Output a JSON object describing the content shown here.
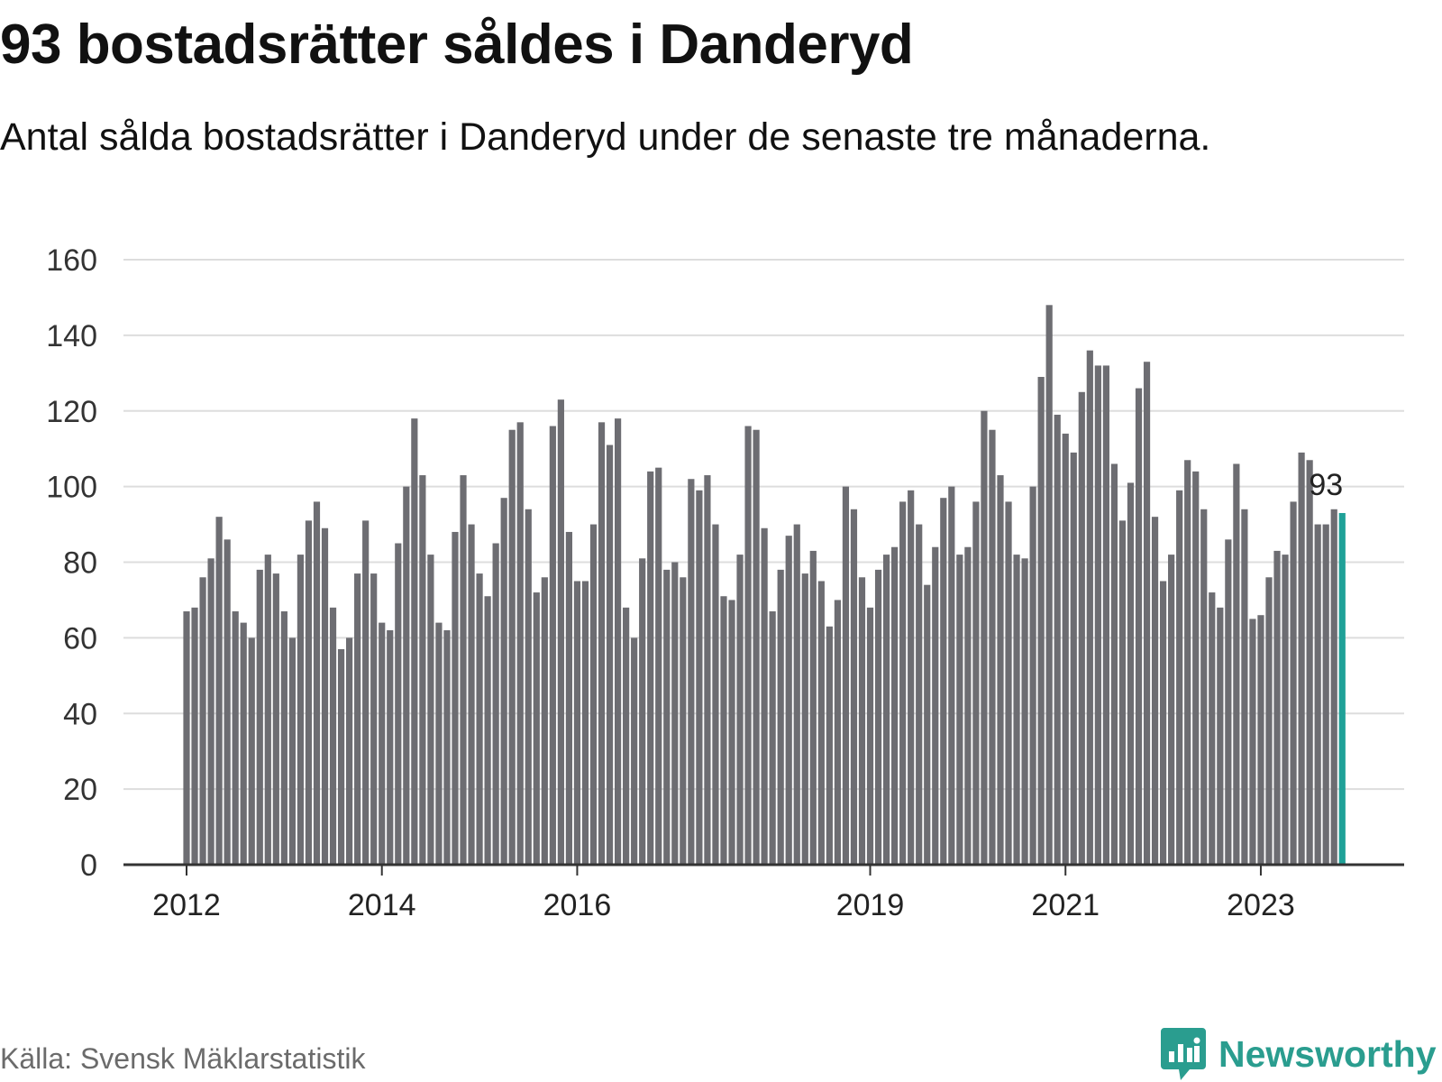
{
  "header": {
    "title": "93 bostadsrätter såldes i Danderyd",
    "subtitle": "Antal sålda bostadsrätter i Danderyd under de senaste tre månaderna."
  },
  "footer": {
    "source": "Källa: Svensk Mäklarstatistik",
    "logo_text": "Newsworthy"
  },
  "colors": {
    "bar": "#6d6d72",
    "highlight": "#1fa198",
    "grid": "#dddddd",
    "axis": "#333333",
    "logo": "#2a9d8f"
  },
  "chart_data": {
    "type": "bar",
    "title": "93 bostadsrätter såldes i Danderyd",
    "subtitle": "Antal sålda bostadsrätter i Danderyd under de senaste tre månaderna.",
    "xlabel": "",
    "ylabel": "",
    "ylim": [
      0,
      160
    ],
    "y_ticks": [
      "0",
      "20",
      "40",
      "60",
      "80",
      "100",
      "120",
      "140",
      "160"
    ],
    "x_ticks": [
      {
        "label": "2012",
        "index": 0
      },
      {
        "label": "2014",
        "index": 24
      },
      {
        "label": "2016",
        "index": 48
      },
      {
        "label": "2019",
        "index": 84
      },
      {
        "label": "2021",
        "index": 108
      },
      {
        "label": "2023",
        "index": 132
      }
    ],
    "grid": true,
    "highlight_index": 142,
    "highlight_label": "93",
    "values": [
      67,
      68,
      76,
      81,
      92,
      86,
      67,
      64,
      60,
      78,
      82,
      77,
      67,
      60,
      82,
      91,
      96,
      89,
      68,
      57,
      60,
      77,
      91,
      77,
      64,
      62,
      85,
      100,
      118,
      103,
      82,
      64,
      62,
      88,
      103,
      90,
      77,
      71,
      85,
      97,
      115,
      117,
      94,
      72,
      76,
      116,
      123,
      88,
      75,
      75,
      90,
      117,
      111,
      118,
      68,
      60,
      81,
      104,
      105,
      78,
      80,
      76,
      102,
      99,
      103,
      90,
      71,
      70,
      82,
      116,
      115,
      89,
      67,
      78,
      87,
      90,
      77,
      83,
      75,
      63,
      70,
      100,
      94,
      76,
      68,
      78,
      82,
      84,
      96,
      99,
      90,
      74,
      84,
      97,
      100,
      82,
      84,
      96,
      120,
      115,
      103,
      96,
      82,
      81,
      100,
      129,
      148,
      119,
      114,
      109,
      125,
      136,
      132,
      132,
      106,
      91,
      101,
      126,
      133,
      92,
      75,
      82,
      99,
      107,
      104,
      94,
      72,
      68,
      86,
      106,
      94,
      65,
      66,
      76,
      83,
      82,
      96,
      109,
      107,
      90,
      90,
      94,
      93
    ]
  }
}
